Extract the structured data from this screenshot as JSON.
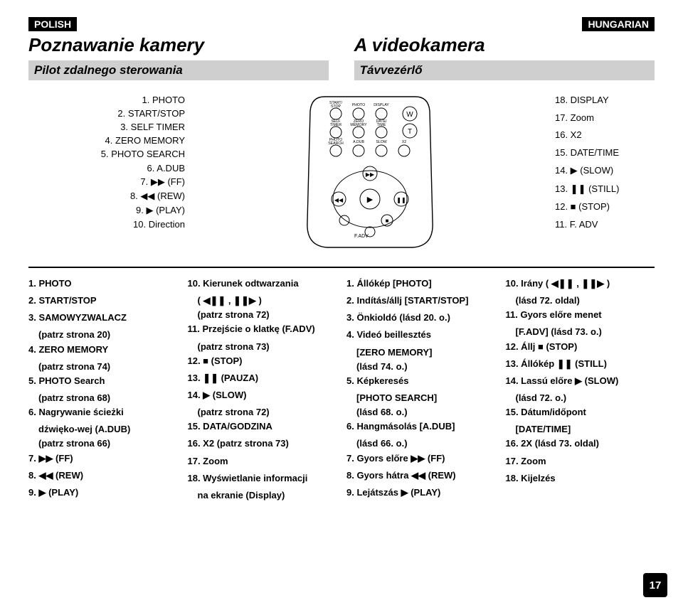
{
  "lang_left": "POLISH",
  "lang_right": "HUNGARIAN",
  "title_left": "Poznawanie kamery",
  "title_right": "A videokamera",
  "sub_left": "Pilot zdalnego sterowania",
  "sub_right": "Távvezérlő",
  "page_number": "17",
  "remote_labels": {
    "r1c1": "START/\nSTOP",
    "r1c2": "PHOTO",
    "r1c3": "DISPLAY",
    "r2c1": "SELF\nTIMER",
    "r2c2": "ZERO\nMEMORY",
    "r2c3": "DATE/\nTIME",
    "r3c1": "PHOTO\nSEARCH",
    "r3c2": "A.DUB",
    "r3c3": "SLOW",
    "r3c4": "X2",
    "w": "W",
    "t": "T",
    "fadv": "F.ADV"
  },
  "left_diagram": [
    "1. PHOTO",
    "2. START/STOP",
    "3. SELF TIMER",
    "4. ZERO MEMORY",
    "5. PHOTO SEARCH",
    "6. A.DUB",
    "7. ▶▶ (FF)",
    "8. ◀◀ (REW)",
    "9. ▶ (PLAY)",
    "10. Direction"
  ],
  "right_diagram": [
    "18. DISPLAY",
    "17. Zoom",
    "16. X2",
    "15. DATE/TIME",
    "14. ▶ (SLOW)",
    "13. ❚❚ (STILL)",
    "12. ■ (STOP)",
    "11. F. ADV"
  ],
  "col1": [
    "1. PHOTO",
    "2. START/STOP",
    "3. SAMOWYZWALACZ",
    "   (patrz strona 20)",
    "4. ZERO MEMORY",
    "   (patrz strona 74)",
    "5. PHOTO Search",
    "   (patrz strona 68)",
    "6. Nagrywanie ścieżki",
    "   dźwięko-wej (A.DUB)",
    "   (patrz strona 66)",
    "7. ▶▶ (FF)",
    "8. ◀◀ (REW)",
    "9. ▶ (PLAY)"
  ],
  "col2": [
    "10. Kierunek odtwarzania",
    "    ( ◀❚❚ , ❚❚▶ )",
    "    (patrz strona 72)",
    "11. Przejście o klatkę (F.ADV)",
    "    (patrz strona 73)",
    "12. ■ (STOP)",
    "13. ❚❚ (PAUZA)",
    "14. ▶ (SLOW)",
    "    (patrz strona 72)",
    "15. DATA/GODZINA",
    "16. X2 (patrz strona 73)",
    "17. Zoom",
    "18. Wyświetlanie informacji",
    "    na ekranie (Display)"
  ],
  "col3": [
    "1. Állókép [PHOTO]",
    "2. Indítás/állj [START/STOP]",
    "3. Önkioldó (lásd 20. o.)",
    "4. Videó beillesztés",
    "   [ZERO MEMORY]",
    "   (lásd 74. o.)",
    "5. Képkeresés",
    "   [PHOTO SEARCH]",
    "   (lásd 68. o.)",
    "6. Hangmásolás [A.DUB]",
    "   (lásd 66. o.)",
    "7. Gyors előre ▶▶ (FF)",
    "8. Gyors hátra ◀◀ (REW)",
    "9. Lejátszás ▶ (PLAY)"
  ],
  "col4": [
    "10. Irány ( ◀❚❚ , ❚❚▶ )",
    "    (lásd 72. oldal)",
    "11. Gyors előre menet",
    "    [F.ADV] (lásd 73. o.)",
    "12. Állj ■ (STOP)",
    "13. Állókép ❚❚ (STILL)",
    "14. Lassú előre ▶ (SLOW)",
    "    (lásd 72. o.)",
    "15. Dátum/időpont",
    "    [DATE/TIME]",
    "16. 2X (lásd 73. oldal)",
    "17. Zoom",
    "18. Kijelzés"
  ],
  "colors": {
    "bg": "#ffffff",
    "text": "#000000",
    "subbar": "#cfcfcf",
    "remote_fill": "#ffffff",
    "remote_stroke": "#000000"
  }
}
